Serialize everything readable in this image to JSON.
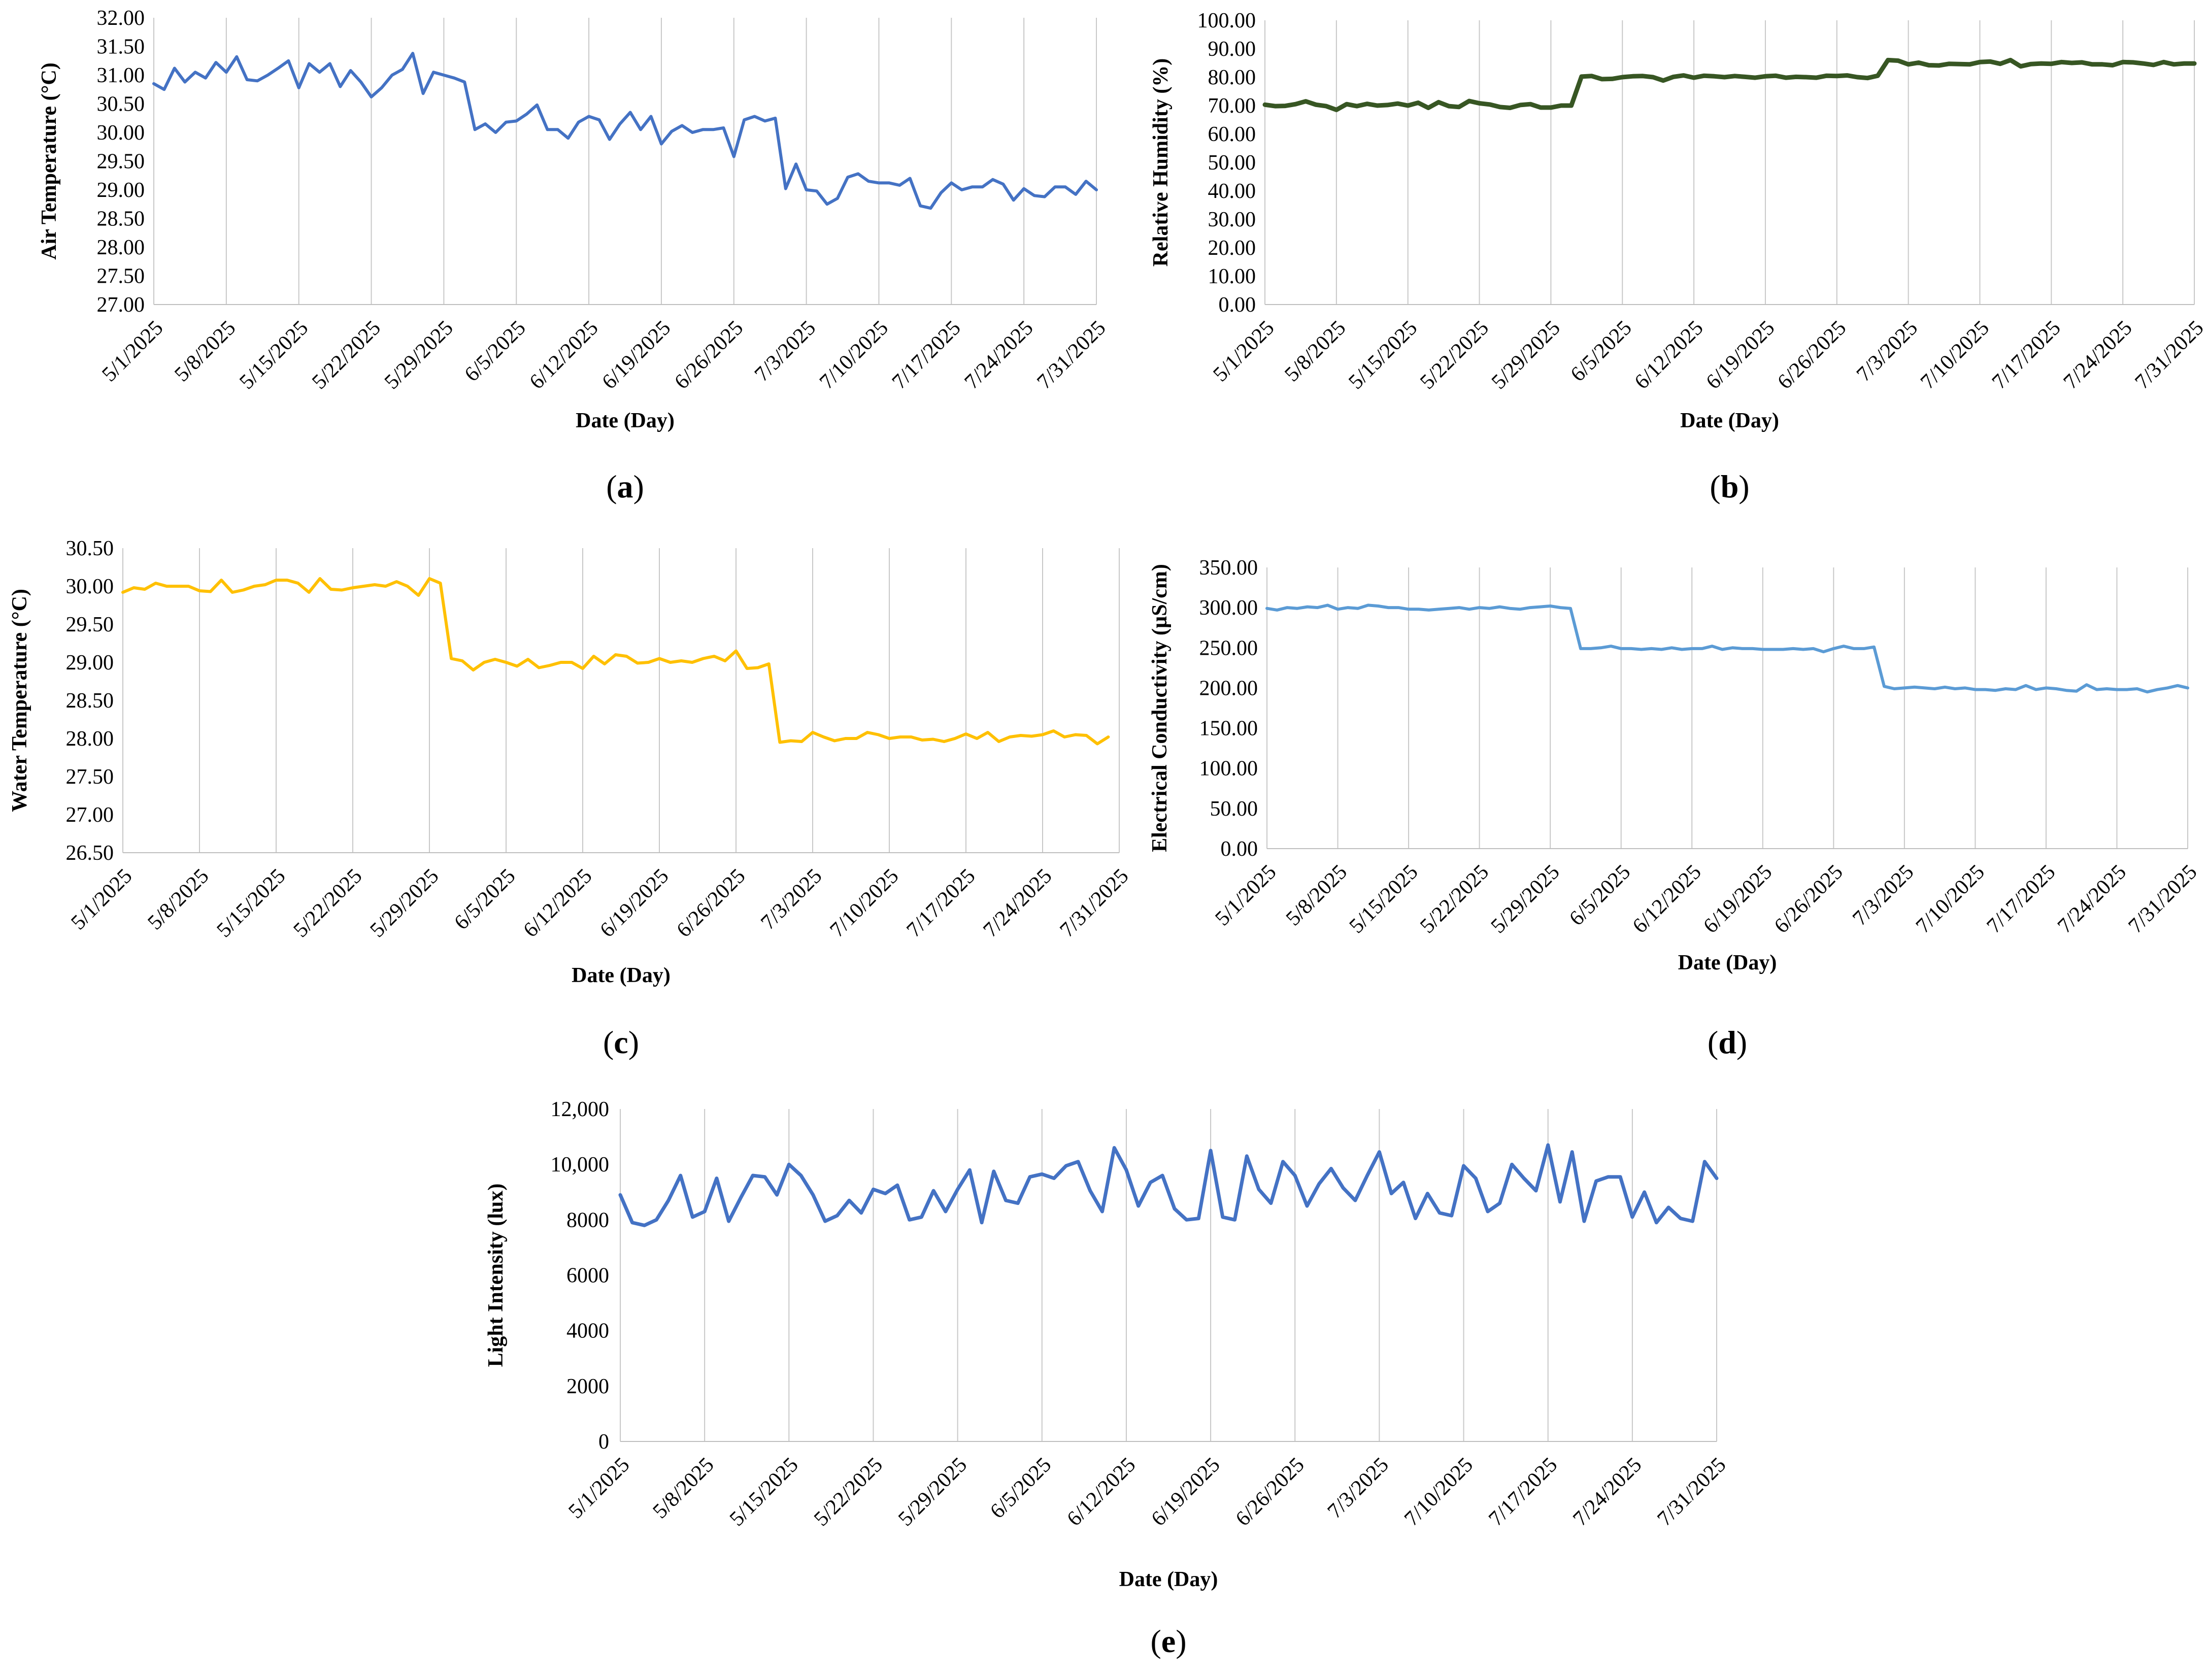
{
  "chart_data": [
    {
      "id": "a",
      "type": "line",
      "panel_label": "(a)",
      "xlabel": "Date (Day)",
      "ylabel": "Air Temperature (°C)",
      "ylim": [
        27,
        32
      ],
      "y_ticks": [
        "27.00",
        "27.50",
        "28.00",
        "28.50",
        "29.00",
        "29.50",
        "30.00",
        "30.50",
        "31.00",
        "31.50",
        "32.00"
      ],
      "x_start": "5/1/2025",
      "x_ticks": [
        "5/1/2025",
        "5/8/2025",
        "5/15/2025",
        "5/22/2025",
        "5/29/2025",
        "6/5/2025",
        "6/12/2025",
        "6/19/2025",
        "6/26/2025",
        "7/3/2025",
        "7/10/2025",
        "7/17/2025",
        "7/24/2025",
        "7/31/2025"
      ],
      "grid": "vertical",
      "color": "#4472c4",
      "series": [
        {
          "values": [
            30.85,
            30.75,
            31.12,
            30.88,
            31.05,
            30.95,
            31.22,
            31.05,
            31.32,
            30.92,
            30.9,
            31.0,
            31.12,
            31.25,
            30.78,
            31.2,
            31.05,
            31.2,
            30.8,
            31.08,
            30.88,
            30.62,
            30.78,
            31.0,
            31.1,
            31.38,
            30.68,
            31.05,
            31.0,
            30.95,
            30.88,
            30.05,
            30.15,
            30.0,
            30.18,
            30.2,
            30.32,
            30.48,
            30.05,
            30.05,
            29.9,
            30.18,
            30.28,
            30.22,
            29.88,
            30.15,
            30.35,
            30.05,
            30.28,
            29.8,
            30.02,
            30.12,
            30.0,
            30.05,
            30.05,
            30.08,
            29.58,
            30.22,
            30.28,
            30.2,
            30.25,
            29.02,
            29.45,
            29.0,
            28.98,
            28.75,
            28.85,
            29.22,
            29.28,
            29.15,
            29.12,
            29.12,
            29.08,
            29.2,
            28.72,
            28.68,
            28.95,
            29.12,
            29.0,
            29.05,
            29.05,
            29.18,
            29.1,
            28.82,
            29.02,
            28.9,
            28.88,
            29.05,
            29.05,
            28.92,
            29.15,
            29.0
          ]
        }
      ]
    },
    {
      "id": "b",
      "type": "line",
      "panel_label": "(b)",
      "xlabel": "Date (Day)",
      "ylabel": "Relative Humidity (%)",
      "ylim": [
        0,
        100
      ],
      "y_ticks": [
        "0.00",
        "10.00",
        "20.00",
        "30.00",
        "40.00",
        "50.00",
        "60.00",
        "70.00",
        "80.00",
        "90.00",
        "100.00"
      ],
      "x_start": "5/1/2025",
      "x_ticks": [
        "5/1/2025",
        "5/8/2025",
        "5/15/2025",
        "5/22/2025",
        "5/29/2025",
        "6/5/2025",
        "6/12/2025",
        "6/19/2025",
        "6/26/2025",
        "7/3/2025",
        "7/10/2025",
        "7/17/2025",
        "7/24/2025",
        "7/31/2025"
      ],
      "grid": "vertical",
      "color": "#375623",
      "series": [
        {
          "values": [
            70.3,
            69.8,
            69.9,
            70.5,
            71.5,
            70.3,
            69.8,
            68.5,
            70.5,
            69.8,
            70.6,
            70.0,
            70.2,
            70.7,
            70.0,
            71.0,
            69.2,
            71.2,
            69.8,
            69.5,
            71.6,
            70.8,
            70.4,
            69.5,
            69.2,
            70.2,
            70.5,
            69.3,
            69.3,
            70.0,
            70.0,
            80.2,
            80.4,
            79.3,
            79.4,
            80.0,
            80.3,
            80.4,
            80.0,
            78.8,
            80.1,
            80.6,
            79.8,
            80.5,
            80.3,
            80.0,
            80.4,
            80.1,
            79.8,
            80.3,
            80.5,
            79.8,
            80.1,
            80.0,
            79.8,
            80.5,
            80.4,
            80.6,
            80.0,
            79.7,
            80.5,
            86.0,
            85.8,
            84.5,
            85.1,
            84.2,
            84.1,
            84.7,
            84.6,
            84.5,
            85.3,
            85.5,
            84.7,
            86.0,
            83.8,
            84.6,
            84.8,
            84.7,
            85.3,
            85.0,
            85.2,
            84.5,
            84.5,
            84.2,
            85.3,
            85.2,
            84.8,
            84.3,
            85.3,
            84.5,
            84.8,
            84.8
          ]
        }
      ]
    },
    {
      "id": "c",
      "type": "line",
      "panel_label": "(c)",
      "xlabel": "Date (Day)",
      "ylabel": "Water Temperature (°C)",
      "ylim": [
        26.5,
        30.5
      ],
      "y_ticks": [
        "26.50",
        "27.00",
        "27.50",
        "28.00",
        "28.50",
        "29.00",
        "29.50",
        "30.00",
        "30.50"
      ],
      "x_start": "5/1/2025",
      "x_ticks": [
        "5/1/2025",
        "5/8/2025",
        "5/15/2025",
        "5/22/2025",
        "5/29/2025",
        "6/5/2025",
        "6/12/2025",
        "6/19/2025",
        "6/26/2025",
        "7/3/2025",
        "7/10/2025",
        "7/17/2025",
        "7/24/2025",
        "7/31/2025"
      ],
      "grid": "vertical",
      "color": "#ffc000",
      "series": [
        {
          "values": [
            29.92,
            29.98,
            29.96,
            30.04,
            30.0,
            30.0,
            30.0,
            29.94,
            29.93,
            30.08,
            29.92,
            29.95,
            30.0,
            30.02,
            30.08,
            30.08,
            30.04,
            29.92,
            30.1,
            29.96,
            29.95,
            29.98,
            30.0,
            30.02,
            30.0,
            30.06,
            30.0,
            29.88,
            30.1,
            30.04,
            29.05,
            29.02,
            28.9,
            29.0,
            29.04,
            29.0,
            28.95,
            29.04,
            28.93,
            28.96,
            29.0,
            29.0,
            28.92,
            29.08,
            28.98,
            29.1,
            29.08,
            28.99,
            29.0,
            29.05,
            29.0,
            29.02,
            29.0,
            29.05,
            29.08,
            29.02,
            29.15,
            28.92,
            28.93,
            28.98,
            27.95,
            27.97,
            27.96,
            28.08,
            28.02,
            27.97,
            28.0,
            28.0,
            28.08,
            28.05,
            28.0,
            28.02,
            28.02,
            27.98,
            27.99,
            27.96,
            28.0,
            28.06,
            28.0,
            28.08,
            27.96,
            28.02,
            28.04,
            28.03,
            28.05,
            28.1,
            28.02,
            28.05,
            28.04,
            27.93,
            28.02
          ]
        }
      ]
    },
    {
      "id": "d",
      "type": "line",
      "panel_label": "(d)",
      "xlabel": "Date (Day)",
      "ylabel": "Electrical Conductivity (µS/cm)",
      "ylim": [
        0,
        350
      ],
      "y_ticks": [
        "0.00",
        "50.00",
        "100.00",
        "150.00",
        "200.00",
        "250.00",
        "300.00",
        "350.00"
      ],
      "x_start": "5/1/2025",
      "x_ticks": [
        "5/1/2025",
        "5/8/2025",
        "5/15/2025",
        "5/22/2025",
        "5/29/2025",
        "6/5/2025",
        "6/12/2025",
        "6/19/2025",
        "6/26/2025",
        "7/3/2025",
        "7/10/2025",
        "7/17/2025",
        "7/24/2025",
        "7/31/2025"
      ],
      "grid": "vertical",
      "color": "#5b9bd5",
      "series": [
        {
          "values": [
            299,
            297,
            300,
            299,
            301,
            300,
            303,
            298,
            300,
            299,
            303,
            302,
            300,
            300,
            298,
            298,
            297,
            298,
            299,
            300,
            298,
            300,
            299,
            301,
            299,
            298,
            300,
            301,
            302,
            300,
            299,
            249,
            249,
            250,
            252,
            249,
            249,
            248,
            249,
            248,
            250,
            248,
            249,
            249,
            252,
            248,
            250,
            249,
            249,
            248,
            248,
            248,
            249,
            248,
            249,
            245,
            249,
            252,
            249,
            249,
            251,
            202,
            199,
            200,
            201,
            200,
            199,
            201,
            199,
            200,
            198,
            198,
            197,
            199,
            198,
            203,
            198,
            200,
            199,
            197,
            196,
            204,
            198,
            199,
            198,
            198,
            199,
            195,
            198,
            200,
            203,
            200
          ]
        }
      ]
    },
    {
      "id": "e",
      "type": "line",
      "panel_label": "(e)",
      "xlabel": "Date (Day)",
      "ylabel": "Light Intensity (lux)",
      "ylim": [
        0,
        12000
      ],
      "y_ticks": [
        "0",
        "2000",
        "4000",
        "6000",
        "8000",
        "10,000",
        "12,000"
      ],
      "x_start": "5/1/2025",
      "x_ticks": [
        "5/1/2025",
        "5/8/2025",
        "5/15/2025",
        "5/22/2025",
        "5/29/2025",
        "6/5/2025",
        "6/12/2025",
        "6/19/2025",
        "6/26/2025",
        "7/3/2025",
        "7/10/2025",
        "7/17/2025",
        "7/24/2025",
        "7/31/2025"
      ],
      "grid": "vertical",
      "color": "#4472c4",
      "series": [
        {
          "values": [
            8900,
            7900,
            7800,
            8000,
            8700,
            9600,
            8100,
            8300,
            9500,
            7950,
            8800,
            9600,
            9550,
            8900,
            10000,
            9600,
            8900,
            7950,
            8150,
            8700,
            8250,
            9100,
            8950,
            9250,
            8000,
            8100,
            9050,
            8300,
            9100,
            9800,
            7900,
            9750,
            8700,
            8600,
            9550,
            9650,
            9500,
            9950,
            10100,
            9050,
            8300,
            10600,
            9800,
            8500,
            9350,
            9600,
            8400,
            8000,
            8050,
            10500,
            8100,
            8000,
            10300,
            9100,
            8600,
            10100,
            9600,
            8500,
            9300,
            9850,
            9150,
            8700,
            9600,
            10450,
            8950,
            9350,
            8050,
            8950,
            8250,
            8150,
            9950,
            9500,
            8300,
            8600,
            10000,
            9500,
            9050,
            10700,
            8650,
            10450,
            7950,
            9400,
            9550,
            9550,
            8100,
            9000,
            7900,
            8450,
            8050,
            7950,
            10100,
            9500
          ]
        }
      ]
    }
  ]
}
